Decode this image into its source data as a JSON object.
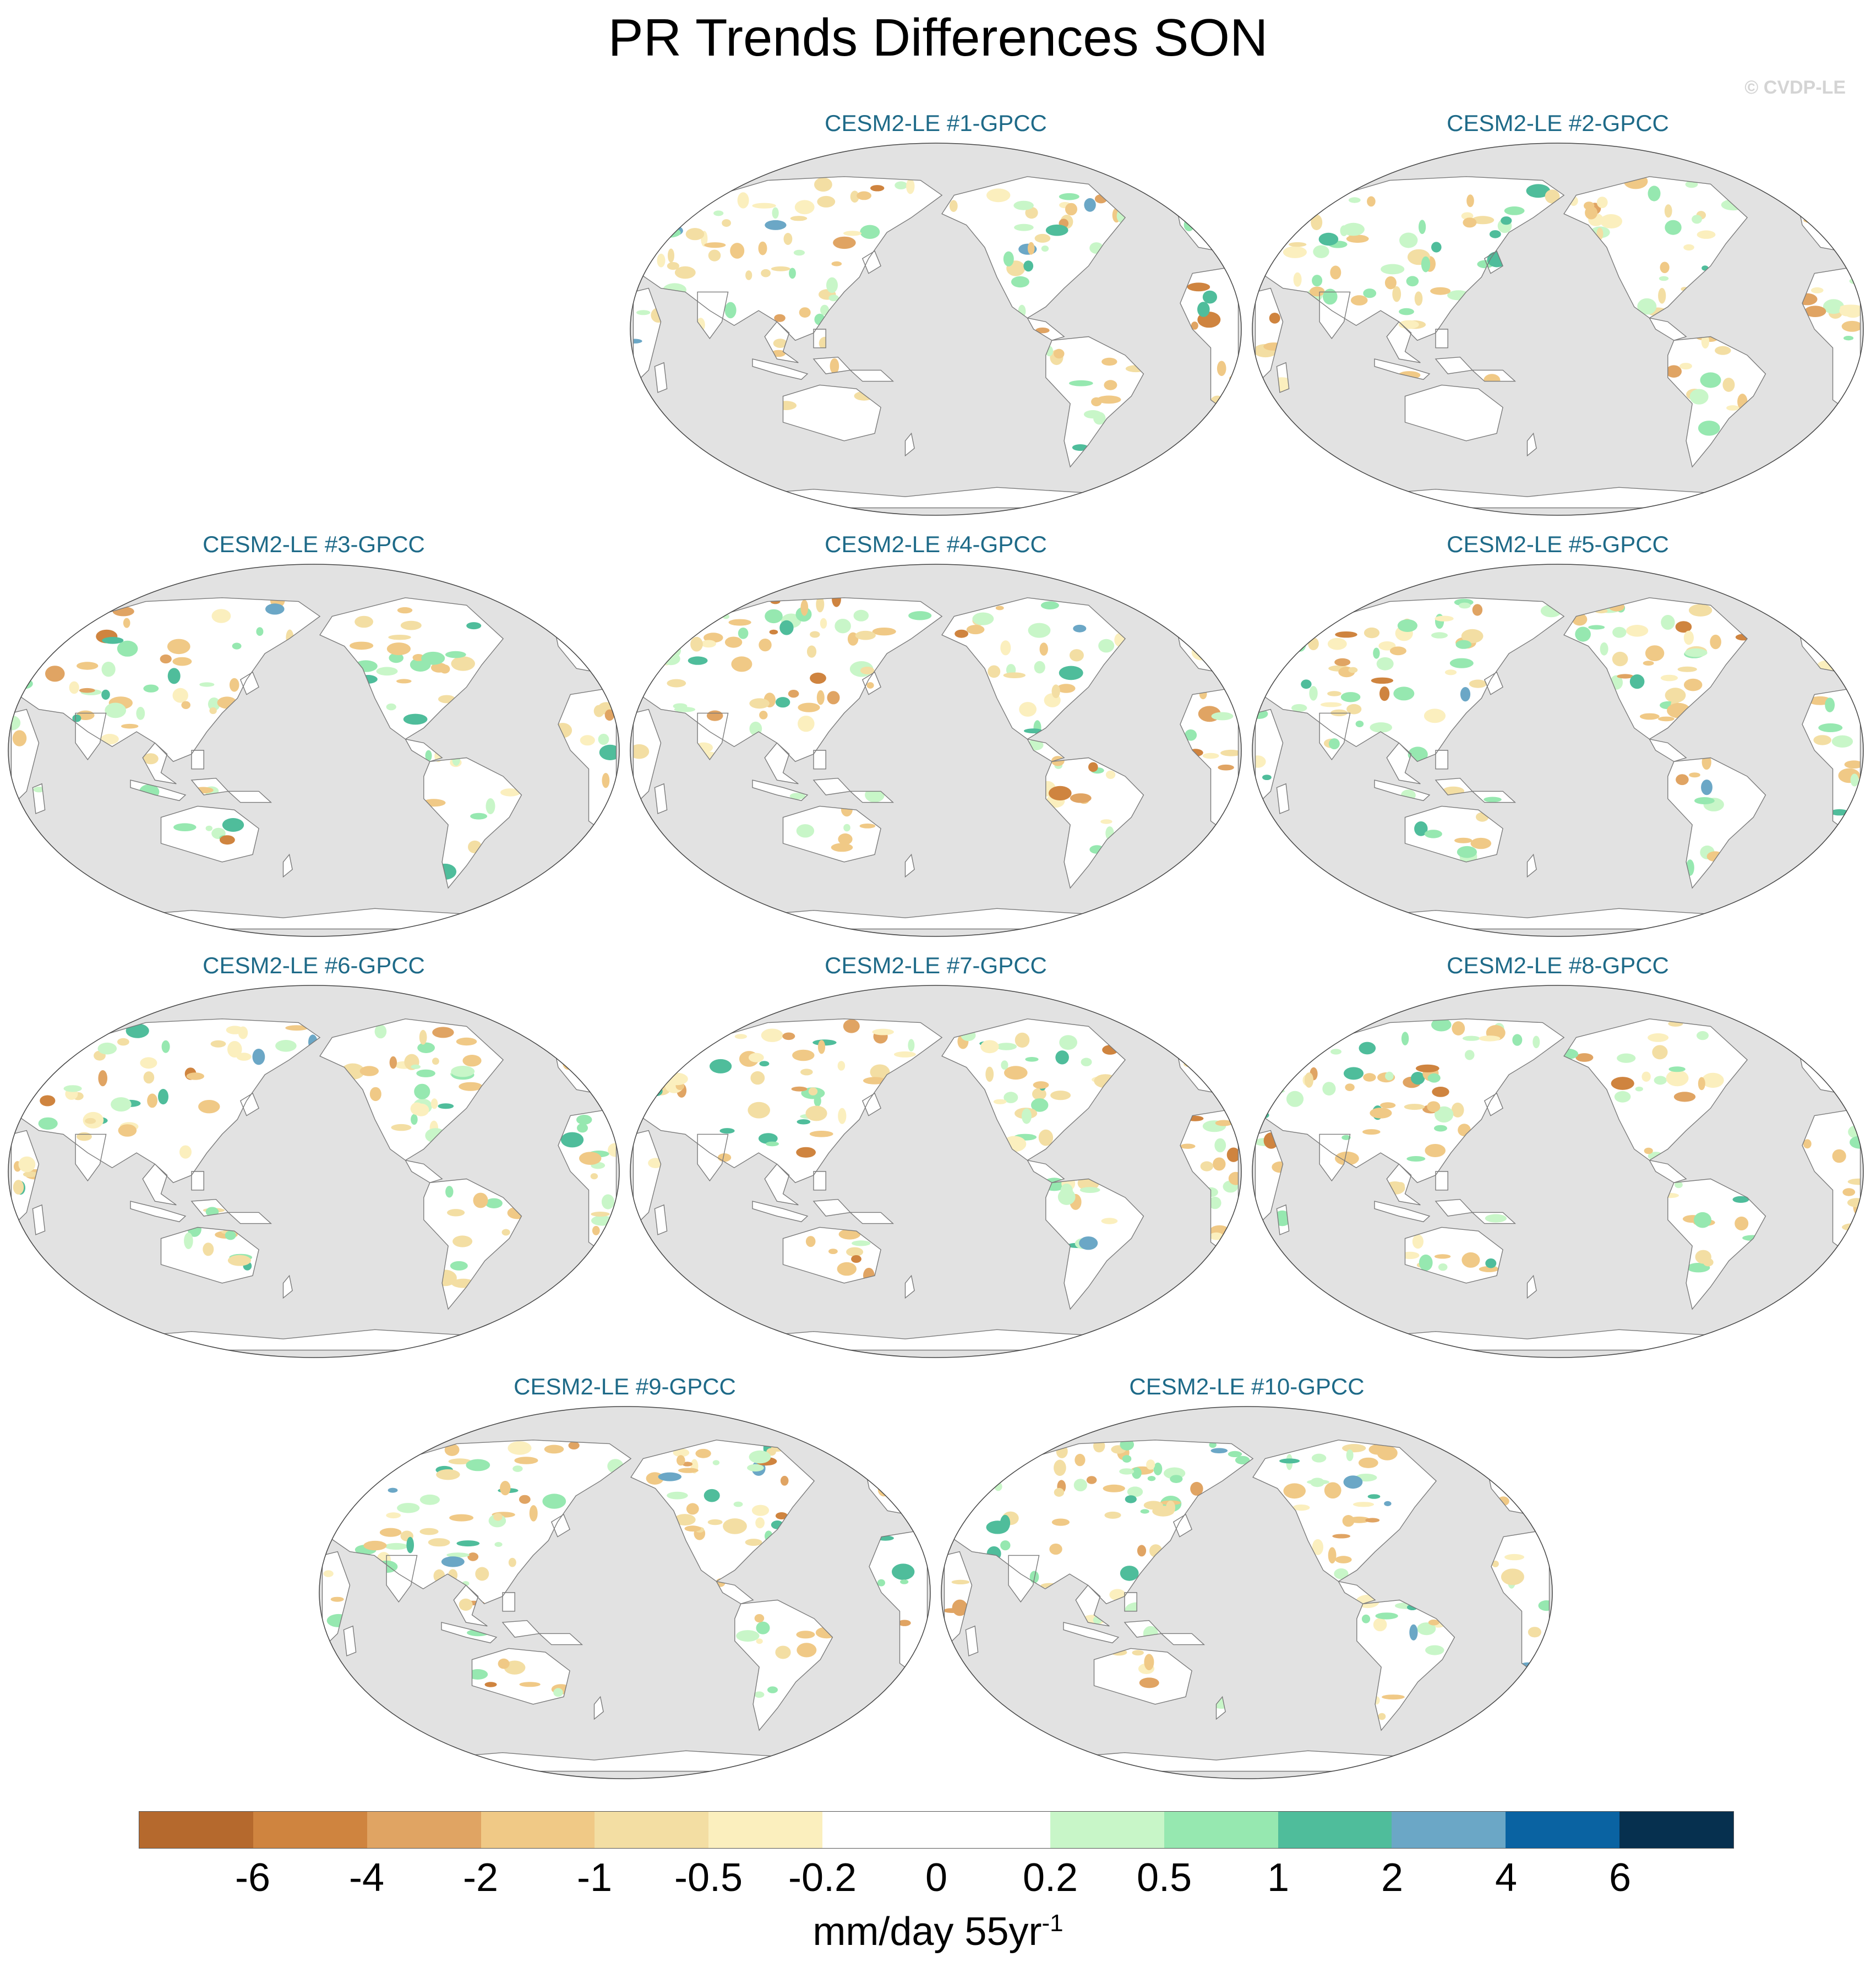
{
  "figure": {
    "title": "PR Trends Differences SON",
    "watermark": "© CVDP-LE"
  },
  "panels": [
    {
      "title": "CESM2-LE #1-GPCC"
    },
    {
      "title": "CESM2-LE #2-GPCC"
    },
    {
      "title": "CESM2-LE #3-GPCC"
    },
    {
      "title": "CESM2-LE #4-GPCC"
    },
    {
      "title": "CESM2-LE #5-GPCC"
    },
    {
      "title": "CESM2-LE #6-GPCC"
    },
    {
      "title": "CESM2-LE #7-GPCC"
    },
    {
      "title": "CESM2-LE #8-GPCC"
    },
    {
      "title": "CESM2-LE #9-GPCC"
    },
    {
      "title": "CESM2-LE #10-GPCC"
    }
  ],
  "colorbar": {
    "colors": [
      "#b5692d",
      "#cf843f",
      "#e0a463",
      "#f0c986",
      "#f3dea3",
      "#fbefbe",
      "#ffffff",
      "#ffffff",
      "#c8f6c8",
      "#96e8b0",
      "#4fbd9b",
      "#6ba7c6",
      "#0a63a2",
      "#06304f"
    ],
    "tick_labels": [
      "-6",
      "-4",
      "-2",
      "-1",
      "-0.5",
      "-0.2",
      "0",
      "0.2",
      "0.5",
      "1",
      "2",
      "4",
      "6"
    ],
    "units_main": "mm/day 55yr",
    "units_exponent": "-1"
  },
  "map_colors": {
    "ocean": "#e2e2e2",
    "land": "#ffffff",
    "coast": "#7a7a7a"
  }
}
